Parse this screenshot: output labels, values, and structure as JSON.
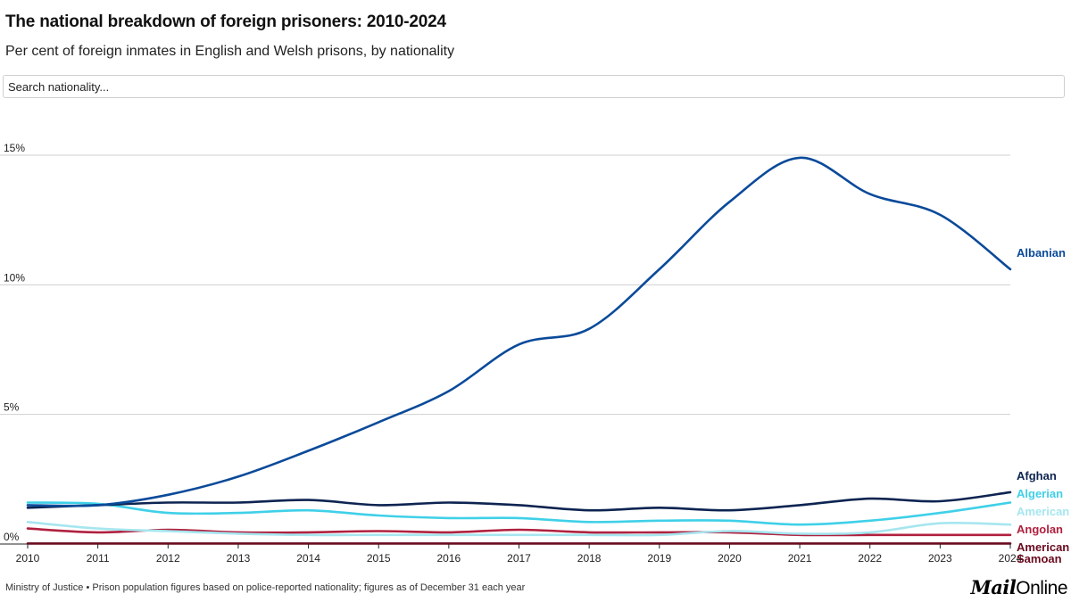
{
  "header": {
    "title": "The national breakdown of foreign prisoners: 2010-2024",
    "subtitle": "Per cent of foreign inmates in English and Welsh prisons, by nationality"
  },
  "search": {
    "placeholder": "Search nationality..."
  },
  "footer": {
    "source": "Ministry of Justice • Prison population figures based on police-reported nationality; figures as of December 31 each year"
  },
  "logo": {
    "part1": "Mail",
    "part2": "Online"
  },
  "chart_data": {
    "type": "line",
    "title": "The national breakdown of foreign prisoners: 2010-2024",
    "xlabel": "",
    "ylabel": "",
    "ylim": [
      0,
      15
    ],
    "yticks": [
      0,
      5,
      10,
      15
    ],
    "ytick_labels": [
      "0%",
      "5%",
      "10%",
      "15%"
    ],
    "x": [
      2010,
      2011,
      2012,
      2013,
      2014,
      2015,
      2016,
      2017,
      2018,
      2019,
      2020,
      2021,
      2022,
      2023,
      2024
    ],
    "xtick_labels": [
      "2010",
      "2011",
      "2012",
      "2013",
      "2014",
      "2015",
      "2016",
      "2017",
      "2018",
      "2019",
      "2020",
      "2021",
      "2022",
      "2023",
      "2024"
    ],
    "series": [
      {
        "name": "Albanian",
        "color": "#0a4a9a",
        "width": 2.6,
        "values": [
          1.5,
          1.5,
          1.9,
          2.6,
          3.6,
          4.7,
          5.9,
          7.7,
          8.3,
          10.6,
          13.2,
          14.9,
          13.5,
          12.7,
          10.6
        ]
      },
      {
        "name": "Afghan",
        "color": "#0d2451",
        "width": 2.6,
        "values": [
          1.4,
          1.5,
          1.6,
          1.6,
          1.7,
          1.5,
          1.6,
          1.5,
          1.3,
          1.4,
          1.3,
          1.5,
          1.75,
          1.65,
          2.0
        ]
      },
      {
        "name": "Algerian",
        "color": "#3fd0e8",
        "width": 2.6,
        "values": [
          1.6,
          1.55,
          1.2,
          1.2,
          1.3,
          1.1,
          1.0,
          1.0,
          0.85,
          0.9,
          0.9,
          0.75,
          0.9,
          1.2,
          1.6
        ]
      },
      {
        "name": "American",
        "color": "#a6e6ef",
        "width": 2.6,
        "values": [
          0.85,
          0.6,
          0.5,
          0.4,
          0.35,
          0.35,
          0.35,
          0.35,
          0.35,
          0.35,
          0.5,
          0.4,
          0.45,
          0.8,
          0.75
        ]
      },
      {
        "name": "Angolan",
        "color": "#b0213f",
        "width": 2.6,
        "values": [
          0.6,
          0.45,
          0.55,
          0.45,
          0.45,
          0.5,
          0.45,
          0.55,
          0.45,
          0.45,
          0.45,
          0.35,
          0.35,
          0.35,
          0.35
        ]
      },
      {
        "name": "American Samoan",
        "color": "#6a0a1e",
        "width": 2.6,
        "values": [
          0.02,
          0.02,
          0.02,
          0.02,
          0.02,
          0.02,
          0.02,
          0.02,
          0.02,
          0.02,
          0.02,
          0.02,
          0.02,
          0.02,
          0.02
        ]
      }
    ]
  }
}
